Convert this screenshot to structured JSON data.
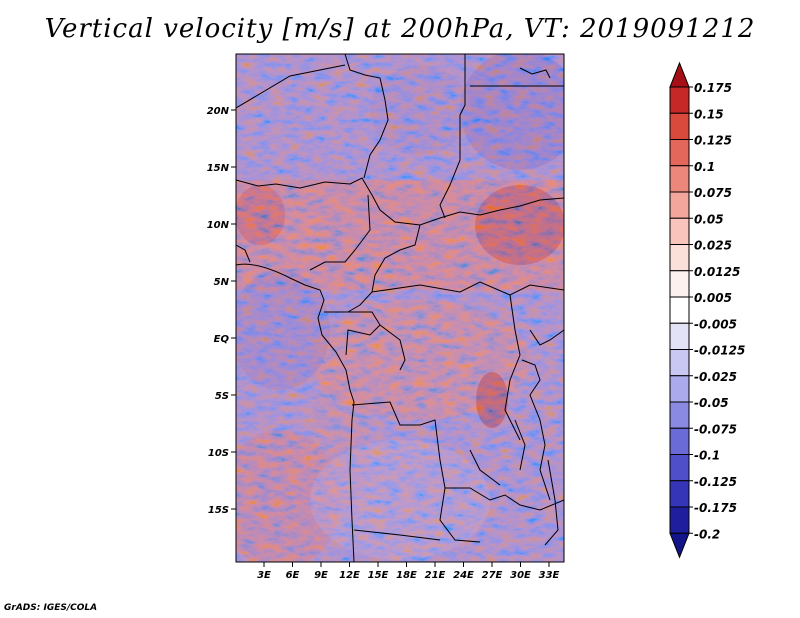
{
  "title": "Vertical velocity [m/s] at 200hPa, VT: 2019091212",
  "credit": "GrADS: IGES/COLA",
  "map": {
    "lat_labels": [
      "20N",
      "15N",
      "10N",
      "5N",
      "EQ",
      "5S",
      "10S",
      "15S"
    ],
    "lon_labels": [
      "3E",
      "6E",
      "9E",
      "12E",
      "15E",
      "18E",
      "21E",
      "24E",
      "27E",
      "30E",
      "33E"
    ]
  },
  "colorbar": {
    "labels": [
      "0.175",
      "0.15",
      "0.125",
      "0.1",
      "0.075",
      "0.05",
      "0.025",
      "0.0125",
      "0.005",
      "-0.005",
      "-0.0125",
      "-0.025",
      "-0.05",
      "-0.075",
      "-0.1",
      "-0.125",
      "-0.175",
      "-0.2"
    ],
    "colors": [
      "#a50f15",
      "#c62828",
      "#d94a3d",
      "#e3675a",
      "#ec877b",
      "#f3a69b",
      "#f8c4bb",
      "#fbe0da",
      "#fdf1ef",
      "#ffffff",
      "#e3e3f8",
      "#c8c8f2",
      "#aaaaec",
      "#8a8ae2",
      "#6b6bd8",
      "#4f4fca",
      "#3535b8",
      "#1f1f9e",
      "#14148a"
    ]
  }
}
